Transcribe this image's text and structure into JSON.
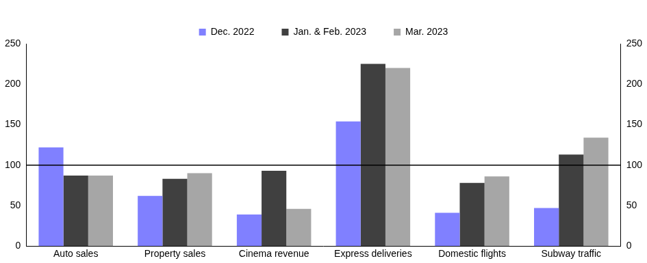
{
  "chart_data": {
    "type": "bar",
    "categories": [
      "Auto sales",
      "Property sales",
      "Cinema revenue",
      "Express deliveries",
      "Domestic flights",
      "Subway traffic"
    ],
    "series": [
      {
        "name": "Dec. 2022",
        "color": "#8080ff",
        "values": [
          122,
          62,
          39,
          154,
          41,
          47
        ]
      },
      {
        "name": "Jan. & Feb. 2023",
        "color": "#404040",
        "values": [
          87,
          83,
          93,
          225,
          78,
          113
        ]
      },
      {
        "name": "Mar. 2023",
        "color": "#a6a6a6",
        "values": [
          87,
          90,
          46,
          220,
          86,
          134
        ]
      }
    ],
    "ylim": [
      0,
      250
    ],
    "yticks": [
      0,
      50,
      100,
      150,
      200,
      250
    ],
    "y2lim": [
      0,
      250
    ],
    "y2ticks": [
      0,
      50,
      100,
      150,
      200,
      250
    ],
    "reference_line": 100,
    "grid": false,
    "legend": "top"
  }
}
